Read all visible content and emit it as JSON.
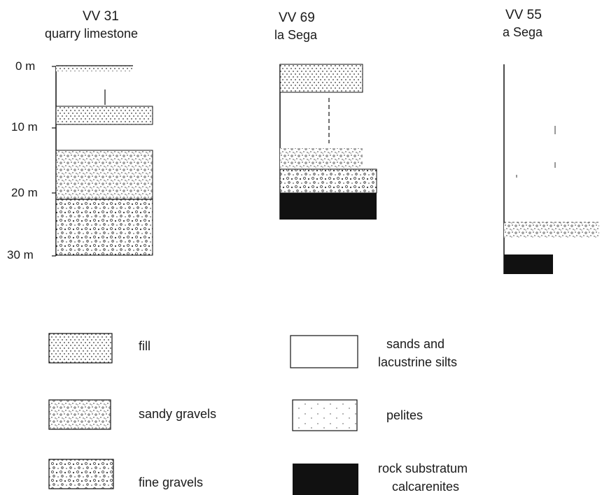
{
  "columns": [
    {
      "id": "VV 31",
      "name": "quarry limestone"
    },
    {
      "id": "VV 69",
      "name": "la Sega"
    },
    {
      "id": "VV 55",
      "name": "a Sega"
    }
  ],
  "depth_labels": [
    "0 m",
    "10 m",
    "20 m",
    "30 m"
  ],
  "legend": {
    "fill": "fill",
    "sandy_gravels": "sandy gravels",
    "fine_gravels": "fine gravels",
    "sands_silts_line1": "sands and",
    "sands_silts_line2": "lacustrine silts",
    "pelites": "pelites",
    "rock_line1": "rock substratum",
    "rock_line2": "calcarenites"
  }
}
